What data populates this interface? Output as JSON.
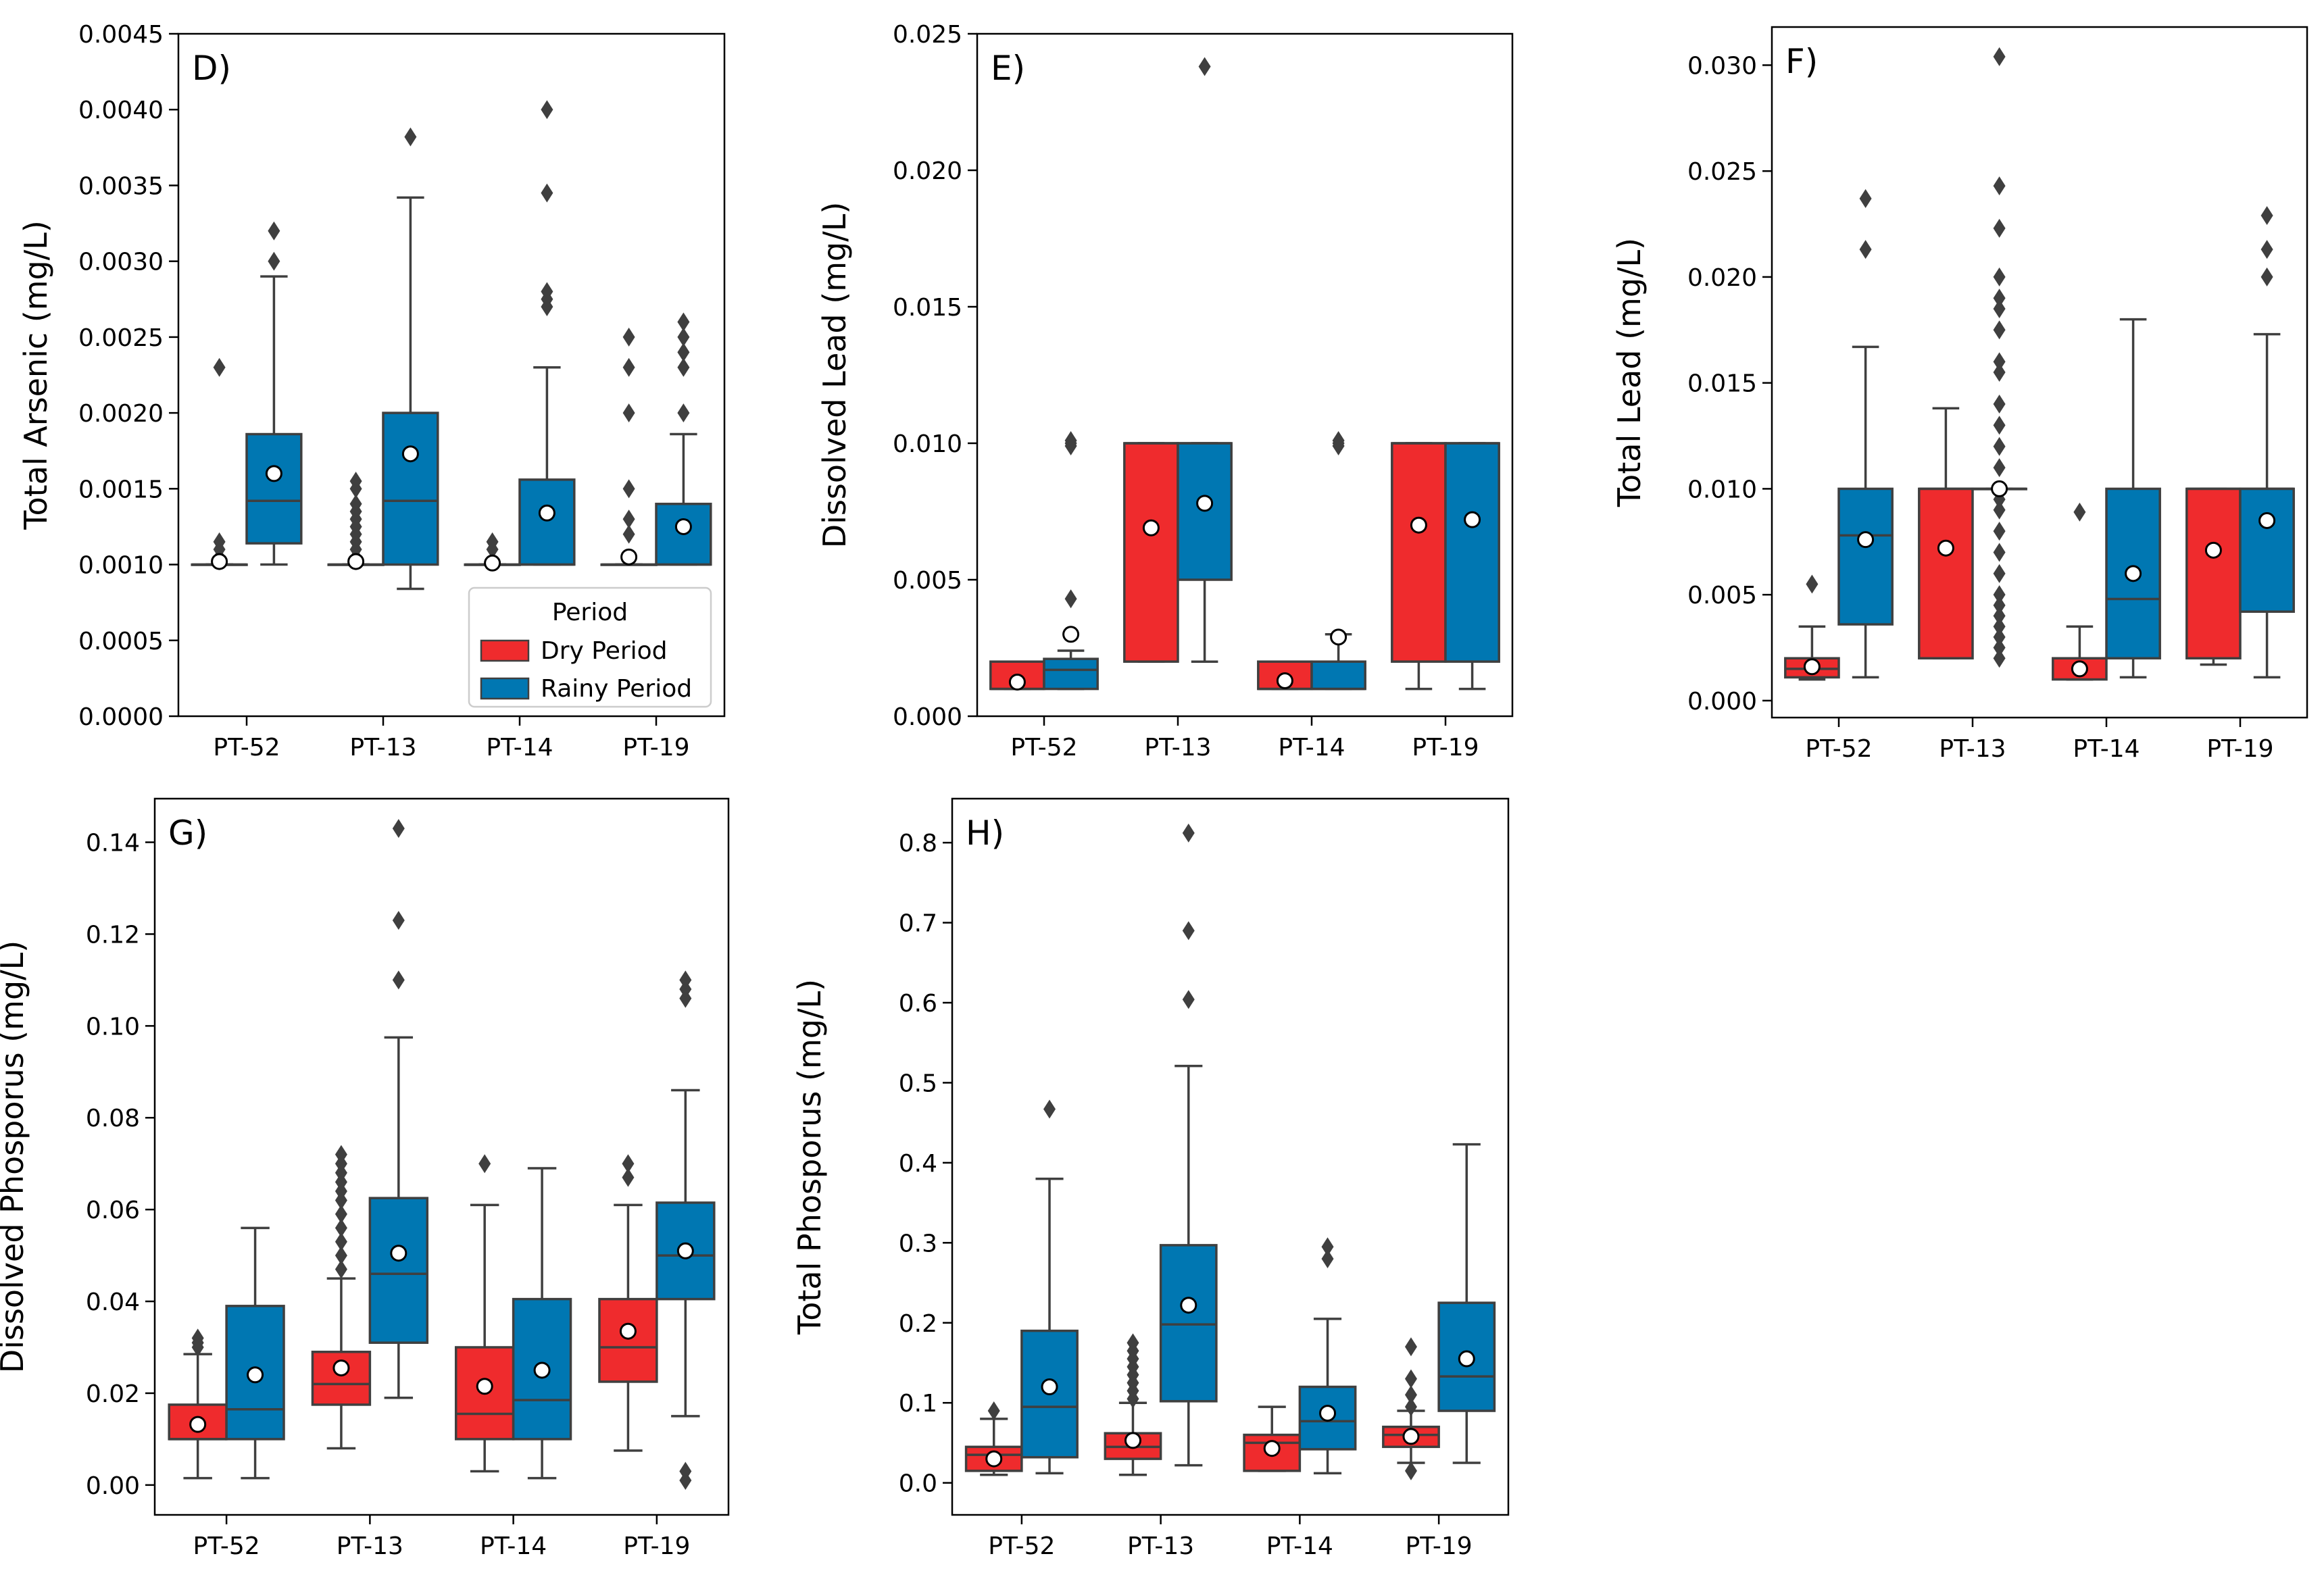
{
  "figure": {
    "legend": {
      "title": "Period",
      "items": [
        {
          "label": "Dry Period",
          "color": "#EF2B2D"
        },
        {
          "label": "Rainy Period",
          "color": "#0077B2"
        }
      ]
    },
    "colors": {
      "dry": "#EF2B2D",
      "rainy": "#0077B2",
      "line": "#3f3f3f",
      "mean_fill": "#ffffff",
      "outlier": "#3f3f3f"
    }
  },
  "chart_data": [
    {
      "panel": "D)",
      "type": "box",
      "ylabel": "Total Arsenic (mg/L)",
      "categories": [
        "PT-52",
        "PT-13",
        "PT-14",
        "PT-19"
      ],
      "ylim": [
        0,
        0.0045
      ],
      "yticks": [
        "0.0000",
        "0.0005",
        "0.0010",
        "0.0015",
        "0.0020",
        "0.0025",
        "0.0030",
        "0.0035",
        "0.0040",
        "0.0045"
      ],
      "legend": true,
      "series": [
        {
          "name": "Dry Period",
          "boxes": [
            {
              "q1": 0.001,
              "median": 0.001,
              "q3": 0.001,
              "low": 0.001,
              "high": 0.001,
              "mean": 0.00102,
              "outliers": [
                0.00105,
                0.0011,
                0.00115,
                0.0023
              ]
            },
            {
              "q1": 0.001,
              "median": 0.001,
              "q3": 0.001,
              "low": 0.001,
              "high": 0.001,
              "mean": 0.00102,
              "outliers": [
                0.00105,
                0.0011,
                0.00115,
                0.0012,
                0.00125,
                0.0013,
                0.00135,
                0.0014,
                0.0015,
                0.00155
              ]
            },
            {
              "q1": 0.001,
              "median": 0.001,
              "q3": 0.001,
              "low": 0.001,
              "high": 0.001,
              "mean": 0.00101,
              "outliers": [
                0.0011,
                0.00115
              ]
            },
            {
              "q1": 0.001,
              "median": 0.001,
              "q3": 0.001,
              "low": 0.001,
              "high": 0.001,
              "mean": 0.00105,
              "outliers": [
                0.0012,
                0.0013,
                0.0015,
                0.002,
                0.0023,
                0.0025
              ]
            }
          ]
        },
        {
          "name": "Rainy Period",
          "boxes": [
            {
              "q1": 0.00114,
              "median": 0.00142,
              "q3": 0.00186,
              "low": 0.001,
              "high": 0.0029,
              "mean": 0.0016,
              "outliers": [
                0.003,
                0.0032
              ]
            },
            {
              "q1": 0.001,
              "median": 0.00142,
              "q3": 0.002,
              "low": 0.00084,
              "high": 0.00342,
              "mean": 0.00173,
              "outliers": [
                0.00382
              ]
            },
            {
              "q1": 0.001,
              "median": 0.001,
              "q3": 0.00156,
              "low": 0.001,
              "high": 0.0023,
              "mean": 0.00134,
              "outliers": [
                0.0027,
                0.00275,
                0.0028,
                0.00345,
                0.004
              ]
            },
            {
              "q1": 0.001,
              "median": 0.001,
              "q3": 0.0014,
              "low": 0.001,
              "high": 0.00186,
              "mean": 0.00125,
              "outliers": [
                0.002,
                0.0023,
                0.0024,
                0.0025,
                0.0026
              ]
            }
          ]
        }
      ]
    },
    {
      "panel": "E)",
      "type": "box",
      "ylabel": "Dissolved Lead (mg/L)",
      "categories": [
        "PT-52",
        "PT-13",
        "PT-14",
        "PT-19"
      ],
      "ylim": [
        0,
        0.025
      ],
      "yticks": [
        "0.000",
        "0.005",
        "0.010",
        "0.015",
        "0.020",
        "0.025"
      ],
      "legend": false,
      "series": [
        {
          "name": "Dry Period",
          "boxes": [
            {
              "q1": 0.001,
              "median": 0.001,
              "q3": 0.002,
              "low": 0.001,
              "high": 0.002,
              "mean": 0.00125,
              "outliers": []
            },
            {
              "q1": 0.002,
              "median": 0.01,
              "q3": 0.01,
              "low": 0.002,
              "high": 0.01,
              "mean": 0.0069,
              "outliers": []
            },
            {
              "q1": 0.001,
              "median": 0.001,
              "q3": 0.002,
              "low": 0.001,
              "high": 0.002,
              "mean": 0.0013,
              "outliers": []
            },
            {
              "q1": 0.002,
              "median": 0.01,
              "q3": 0.01,
              "low": 0.001,
              "high": 0.01,
              "mean": 0.007,
              "outliers": []
            }
          ]
        },
        {
          "name": "Rainy Period",
          "boxes": [
            {
              "q1": 0.001,
              "median": 0.0017,
              "q3": 0.0021,
              "low": 0.001,
              "high": 0.0024,
              "mean": 0.003,
              "outliers": [
                0.0043,
                0.0099,
                0.01,
                0.0101
              ]
            },
            {
              "q1": 0.005,
              "median": 0.01,
              "q3": 0.01,
              "low": 0.002,
              "high": 0.01,
              "mean": 0.0078,
              "outliers": [
                0.0238
              ]
            },
            {
              "q1": 0.001,
              "median": 0.001,
              "q3": 0.002,
              "low": 0.001,
              "high": 0.003,
              "mean": 0.0029,
              "outliers": [
                0.0099,
                0.01,
                0.0101
              ]
            },
            {
              "q1": 0.002,
              "median": 0.01,
              "q3": 0.01,
              "low": 0.001,
              "high": 0.01,
              "mean": 0.0072,
              "outliers": []
            }
          ]
        }
      ]
    },
    {
      "panel": "F)",
      "type": "box",
      "ylabel": "Total Lead (mg/L)",
      "categories": [
        "PT-52",
        "PT-13",
        "PT-14",
        "PT-19"
      ],
      "ylim": [
        -0.0008,
        0.0318
      ],
      "yticks": [
        "0.000",
        "0.005",
        "0.010",
        "0.015",
        "0.020",
        "0.025",
        "0.030"
      ],
      "legend": false,
      "series": [
        {
          "name": "Dry Period",
          "boxes": [
            {
              "q1": 0.0011,
              "median": 0.0015,
              "q3": 0.002,
              "low": 0.001,
              "high": 0.0035,
              "mean": 0.0016,
              "outliers": [
                0.0055
              ]
            },
            {
              "q1": 0.002,
              "median": 0.01,
              "q3": 0.01,
              "low": 0.002,
              "high": 0.0138,
              "mean": 0.0072,
              "outliers": []
            },
            {
              "q1": 0.001,
              "median": 0.002,
              "q3": 0.002,
              "low": 0.001,
              "high": 0.0035,
              "mean": 0.0015,
              "outliers": [
                0.0089
              ]
            },
            {
              "q1": 0.002,
              "median": 0.01,
              "q3": 0.01,
              "low": 0.0017,
              "high": 0.01,
              "mean": 0.0071,
              "outliers": []
            }
          ]
        },
        {
          "name": "Rainy Period",
          "boxes": [
            {
              "q1": 0.0036,
              "median": 0.0078,
              "q3": 0.01,
              "low": 0.0011,
              "high": 0.0167,
              "mean": 0.0076,
              "outliers": [
                0.0213,
                0.0237
              ]
            },
            {
              "q1": 0.01,
              "median": 0.01,
              "q3": 0.01,
              "low": 0.01,
              "high": 0.01,
              "mean": 0.01,
              "outliers": [
                0.002,
                0.0025,
                0.003,
                0.0035,
                0.004,
                0.0045,
                0.005,
                0.006,
                0.007,
                0.008,
                0.009,
                0.0095,
                0.011,
                0.012,
                0.013,
                0.014,
                0.0155,
                0.016,
                0.0175,
                0.0185,
                0.019,
                0.02,
                0.0223,
                0.0243,
                0.0304
              ]
            },
            {
              "q1": 0.002,
              "median": 0.0048,
              "q3": 0.01,
              "low": 0.0011,
              "high": 0.018,
              "mean": 0.006,
              "outliers": []
            },
            {
              "q1": 0.0042,
              "median": 0.01,
              "q3": 0.01,
              "low": 0.0011,
              "high": 0.0173,
              "mean": 0.0085,
              "outliers": [
                0.02,
                0.0213,
                0.0229
              ]
            }
          ]
        }
      ]
    },
    {
      "panel": "G)",
      "type": "box",
      "ylabel": "Dissolved Phosporus (mg/L)",
      "categories": [
        "PT-52",
        "PT-13",
        "PT-14",
        "PT-19"
      ],
      "ylim": [
        -0.0065,
        0.1495
      ],
      "yticks": [
        "0.00",
        "0.02",
        "0.04",
        "0.06",
        "0.08",
        "0.10",
        "0.12",
        "0.14"
      ],
      "legend": false,
      "series": [
        {
          "name": "Dry Period",
          "boxes": [
            {
              "q1": 0.01,
              "median": 0.01,
              "q3": 0.0175,
              "low": 0.0015,
              "high": 0.0285,
              "mean": 0.0132,
              "outliers": [
                0.03,
                0.031,
                0.032
              ]
            },
            {
              "q1": 0.0175,
              "median": 0.022,
              "q3": 0.029,
              "low": 0.008,
              "high": 0.045,
              "mean": 0.0255,
              "outliers": [
                0.047,
                0.05,
                0.053,
                0.056,
                0.059,
                0.062,
                0.064,
                0.066,
                0.068,
                0.07,
                0.072
              ]
            },
            {
              "q1": 0.01,
              "median": 0.0155,
              "q3": 0.03,
              "low": 0.003,
              "high": 0.061,
              "mean": 0.0215,
              "outliers": [
                0.07
              ]
            },
            {
              "q1": 0.0225,
              "median": 0.03,
              "q3": 0.0405,
              "low": 0.0075,
              "high": 0.061,
              "mean": 0.0335,
              "outliers": [
                0.067,
                0.07
              ]
            }
          ]
        },
        {
          "name": "Rainy Period",
          "boxes": [
            {
              "q1": 0.01,
              "median": 0.0165,
              "q3": 0.039,
              "low": 0.0015,
              "high": 0.056,
              "mean": 0.024,
              "outliers": []
            },
            {
              "q1": 0.031,
              "median": 0.046,
              "q3": 0.0625,
              "low": 0.019,
              "high": 0.0975,
              "mean": 0.0505,
              "outliers": [
                0.11,
                0.123,
                0.143
              ]
            },
            {
              "q1": 0.01,
              "median": 0.0185,
              "q3": 0.0405,
              "low": 0.0015,
              "high": 0.069,
              "mean": 0.025,
              "outliers": []
            },
            {
              "q1": 0.0405,
              "median": 0.05,
              "q3": 0.0615,
              "low": 0.015,
              "high": 0.086,
              "mean": 0.051,
              "outliers": [
                0.001,
                0.003,
                0.106,
                0.108,
                0.11
              ]
            }
          ]
        }
      ]
    },
    {
      "panel": "H)",
      "type": "box",
      "ylabel": "Total Phosporus (mg/L)",
      "categories": [
        "PT-52",
        "PT-13",
        "PT-14",
        "PT-19"
      ],
      "ylim": [
        -0.04,
        0.855
      ],
      "yticks": [
        "0.0",
        "0.1",
        "0.2",
        "0.3",
        "0.4",
        "0.5",
        "0.6",
        "0.7",
        "0.8"
      ],
      "legend": false,
      "series": [
        {
          "name": "Dry Period",
          "boxes": [
            {
              "q1": 0.015,
              "median": 0.035,
              "q3": 0.045,
              "low": 0.01,
              "high": 0.08,
              "mean": 0.03,
              "outliers": [
                0.09
              ]
            },
            {
              "q1": 0.03,
              "median": 0.045,
              "q3": 0.062,
              "low": 0.01,
              "high": 0.1,
              "mean": 0.053,
              "outliers": [
                0.105,
                0.115,
                0.125,
                0.135,
                0.145,
                0.155,
                0.165,
                0.175
              ]
            },
            {
              "q1": 0.015,
              "median": 0.05,
              "q3": 0.06,
              "low": 0.015,
              "high": 0.095,
              "mean": 0.043,
              "outliers": []
            },
            {
              "q1": 0.045,
              "median": 0.06,
              "q3": 0.07,
              "low": 0.025,
              "high": 0.09,
              "mean": 0.058,
              "outliers": [
                0.015,
                0.095,
                0.11,
                0.13,
                0.17
              ]
            }
          ]
        },
        {
          "name": "Rainy Period",
          "boxes": [
            {
              "q1": 0.032,
              "median": 0.095,
              "q3": 0.19,
              "low": 0.012,
              "high": 0.38,
              "mean": 0.12,
              "outliers": [
                0.467
              ]
            },
            {
              "q1": 0.102,
              "median": 0.198,
              "q3": 0.297,
              "low": 0.022,
              "high": 0.521,
              "mean": 0.222,
              "outliers": [
                0.604,
                0.69,
                0.812
              ]
            },
            {
              "q1": 0.042,
              "median": 0.077,
              "q3": 0.12,
              "low": 0.012,
              "high": 0.205,
              "mean": 0.087,
              "outliers": [
                0.28,
                0.295
              ]
            },
            {
              "q1": 0.09,
              "median": 0.133,
              "q3": 0.225,
              "low": 0.025,
              "high": 0.423,
              "mean": 0.155,
              "outliers": []
            }
          ]
        }
      ]
    }
  ]
}
